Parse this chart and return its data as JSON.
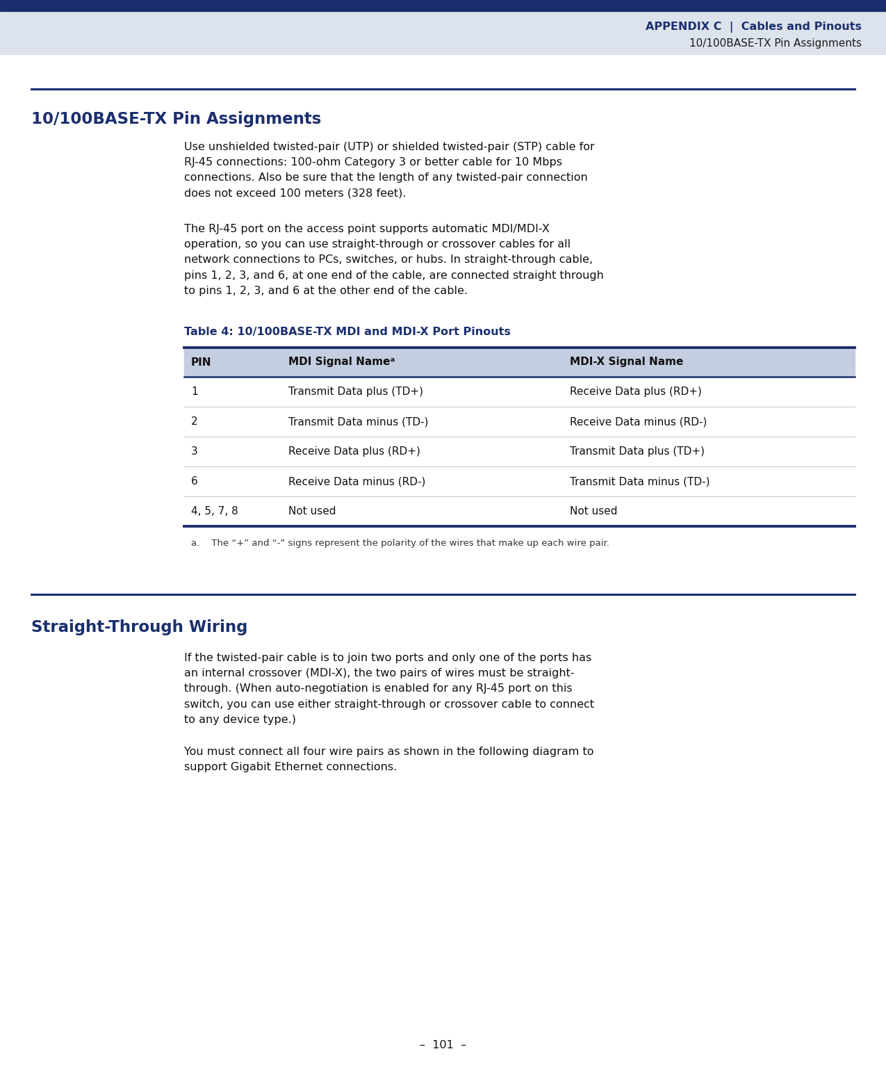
{
  "page_bg": "#ffffff",
  "header_bg": "#1b2f6e",
  "header_light_bg": "#dde3ec",
  "header_text_color": "#1b2f6e",
  "body_text_color": "#111111",
  "dark_navy": "#1b2f6e",
  "table_header_bg": "#c5cde0",
  "table_border_color": "#1b2f6e",
  "rule_color": "#1b2f6e",
  "header_title_bold": "APPENDIX C",
  "header_pipe": "  |  ",
  "header_subtitle1": "Cables and Pinouts",
  "header_subtitle2": "10/100BASE-TX Pin Assignments",
  "section1_title": "10/100BASE-TX Pin Assignments",
  "para1": "Use unshielded twisted-pair (UTP) or shielded twisted-pair (STP) cable for\nRJ-45 connections: 100-ohm Category 3 or better cable for 10 Mbps\nconnections. Also be sure that the length of any twisted-pair connection\ndoes not exceed 100 meters (328 feet).",
  "para2": "The RJ-45 port on the access point supports automatic MDI/MDI-X\noperation, so you can use straight-through or crossover cables for all\nnetwork connections to PCs, switches, or hubs. In straight-through cable,\npins 1, 2, 3, and 6, at one end of the cable, are connected straight through\nto pins 1, 2, 3, and 6 at the other end of the cable.",
  "table_title": "Table 4: 10/100BASE-TX MDI and MDI-X Port Pinouts",
  "col_headers": [
    "PIN",
    "MDI Signal Nameᵃ",
    "MDI-X Signal Name"
  ],
  "table_rows": [
    [
      "1",
      "Transmit Data plus (TD+)",
      "Receive Data plus (RD+)"
    ],
    [
      "2",
      "Transmit Data minus (TD-)",
      "Receive Data minus (RD-)"
    ],
    [
      "3",
      "Receive Data plus (RD+)",
      "Transmit Data plus (TD+)"
    ],
    [
      "6",
      "Receive Data minus (RD-)",
      "Transmit Data minus (TD-)"
    ],
    [
      "4, 5, 7, 8",
      "Not used",
      "Not used"
    ]
  ],
  "footnote": "a.    The “+” and “-” signs represent the polarity of the wires that make up each wire pair.",
  "section2_title": "Straight-Through Wiring",
  "para3": "If the twisted-pair cable is to join two ports and only one of the ports has\nan internal crossover (MDI-X), the two pairs of wires must be straight-\nthrough. (When auto-negotiation is enabled for any RJ-45 port on this\nswitch, you can use either straight-through or crossover cable to connect\nto any device type.)",
  "para4": "You must connect all four wire pairs as shown in the following diagram to\nsupport Gigabit Ethernet connections.",
  "footer_text": "–  101  –"
}
